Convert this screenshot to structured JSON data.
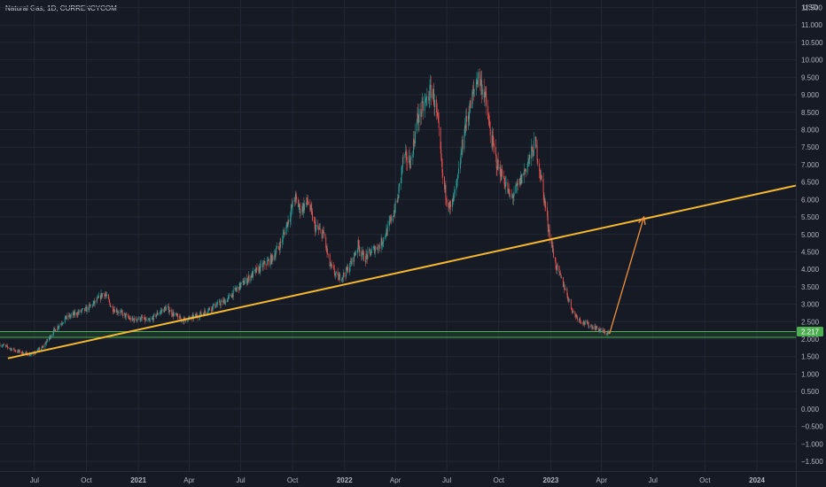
{
  "header": {
    "symbol_title": "Natural Gas, 1D, CURRENCYCOM"
  },
  "chart_data": {
    "type": "candlestick",
    "currency": "USD",
    "y_ticks": [
      "11.500",
      "11.000",
      "10.500",
      "10.000",
      "9.500",
      "9.000",
      "8.500",
      "8.000",
      "7.500",
      "7.000",
      "6.500",
      "6.000",
      "5.500",
      "5.000",
      "4.500",
      "4.000",
      "3.500",
      "3.000",
      "2.500",
      "2.000",
      "1.500",
      "1.000",
      "0.500",
      "0.000",
      "−0.500",
      "−1.000",
      "−1.500"
    ],
    "ylim": [
      -1.5,
      11.5
    ],
    "x_ticks": [
      {
        "label": "Jul",
        "date": "2020-07-01",
        "bold": false
      },
      {
        "label": "Oct",
        "date": "2020-10-01",
        "bold": false
      },
      {
        "label": "2021",
        "date": "2021-01-01",
        "bold": true
      },
      {
        "label": "Apr",
        "date": "2021-04-01",
        "bold": false
      },
      {
        "label": "Jul",
        "date": "2021-07-01",
        "bold": false
      },
      {
        "label": "Oct",
        "date": "2021-10-01",
        "bold": false
      },
      {
        "label": "2022",
        "date": "2022-01-01",
        "bold": true
      },
      {
        "label": "Apr",
        "date": "2022-04-01",
        "bold": false
      },
      {
        "label": "Jul",
        "date": "2022-07-01",
        "bold": false
      },
      {
        "label": "Oct",
        "date": "2022-10-01",
        "bold": false
      },
      {
        "label": "2023",
        "date": "2023-01-01",
        "bold": true
      },
      {
        "label": "Apr",
        "date": "2023-04-01",
        "bold": false
      },
      {
        "label": "Jul",
        "date": "2023-07-01",
        "bold": false
      },
      {
        "label": "Oct",
        "date": "2023-10-01",
        "bold": false
      },
      {
        "label": "2024",
        "date": "2024-01-01",
        "bold": true
      }
    ],
    "xlim": [
      "2020-05-01",
      "2024-03-10"
    ],
    "price_path": [
      [
        "2020-05-01",
        1.85
      ],
      [
        "2020-06-01",
        1.65
      ],
      [
        "2020-06-25",
        1.55
      ],
      [
        "2020-07-15",
        1.75
      ],
      [
        "2020-08-05",
        2.25
      ],
      [
        "2020-08-25",
        2.6
      ],
      [
        "2020-09-15",
        2.75
      ],
      [
        "2020-10-01",
        2.85
      ],
      [
        "2020-10-20",
        3.1
      ],
      [
        "2020-11-01",
        3.35
      ],
      [
        "2020-11-15",
        2.9
      ],
      [
        "2020-12-01",
        2.75
      ],
      [
        "2020-12-20",
        2.55
      ],
      [
        "2021-01-05",
        2.6
      ],
      [
        "2021-01-20",
        2.5
      ],
      [
        "2021-02-05",
        2.75
      ],
      [
        "2021-02-20",
        2.9
      ],
      [
        "2021-03-05",
        2.7
      ],
      [
        "2021-03-20",
        2.55
      ],
      [
        "2021-04-05",
        2.6
      ],
      [
        "2021-04-25",
        2.75
      ],
      [
        "2021-05-15",
        2.95
      ],
      [
        "2021-06-05",
        3.1
      ],
      [
        "2021-06-25",
        3.45
      ],
      [
        "2021-07-15",
        3.75
      ],
      [
        "2021-08-05",
        4.05
      ],
      [
        "2021-08-25",
        4.3
      ],
      [
        "2021-09-10",
        4.75
      ],
      [
        "2021-09-25",
        5.5
      ],
      [
        "2021-10-05",
        6.05
      ],
      [
        "2021-10-15",
        5.7
      ],
      [
        "2021-10-28",
        5.95
      ],
      [
        "2021-11-10",
        5.2
      ],
      [
        "2021-11-25",
        5.0
      ],
      [
        "2021-12-05",
        4.15
      ],
      [
        "2021-12-20",
        3.75
      ],
      [
        "2022-01-01",
        3.85
      ],
      [
        "2022-01-15",
        4.25
      ],
      [
        "2022-01-25",
        4.7
      ],
      [
        "2022-02-05",
        4.3
      ],
      [
        "2022-02-20",
        4.55
      ],
      [
        "2022-03-05",
        4.7
      ],
      [
        "2022-03-20",
        5.2
      ],
      [
        "2022-04-05",
        6.0
      ],
      [
        "2022-04-15",
        7.2
      ],
      [
        "2022-04-28",
        7.1
      ],
      [
        "2022-05-10",
        8.3
      ],
      [
        "2022-05-25",
        8.8
      ],
      [
        "2022-06-05",
        9.2
      ],
      [
        "2022-06-15",
        8.2
      ],
      [
        "2022-06-25",
        6.4
      ],
      [
        "2022-07-08",
        5.7
      ],
      [
        "2022-07-20",
        6.5
      ],
      [
        "2022-08-01",
        8.0
      ],
      [
        "2022-08-15",
        8.9
      ],
      [
        "2022-08-25",
        9.55
      ],
      [
        "2022-09-05",
        9.1
      ],
      [
        "2022-09-15",
        8.0
      ],
      [
        "2022-09-28",
        7.0
      ],
      [
        "2022-10-10",
        6.6
      ],
      [
        "2022-10-22",
        6.0
      ],
      [
        "2022-11-05",
        6.4
      ],
      [
        "2022-11-20",
        7.0
      ],
      [
        "2022-12-05",
        7.6
      ],
      [
        "2022-12-15",
        6.6
      ],
      [
        "2022-12-28",
        5.2
      ],
      [
        "2023-01-10",
        4.1
      ],
      [
        "2023-01-25",
        3.5
      ],
      [
        "2023-02-10",
        2.75
      ],
      [
        "2023-02-25",
        2.5
      ],
      [
        "2023-03-10",
        2.4
      ],
      [
        "2023-03-25",
        2.3
      ],
      [
        "2023-04-05",
        2.2
      ],
      [
        "2023-04-15",
        2.17
      ]
    ],
    "support_zone": {
      "low": 2.05,
      "high": 2.217
    },
    "price_label": "2.217",
    "trendline": {
      "start": [
        "2020-05-15",
        1.45
      ],
      "end": [
        "2024-03-10",
        6.4
      ]
    },
    "projection_arrow": {
      "start": [
        "2023-04-15",
        2.15
      ],
      "end": [
        "2023-06-15",
        5.5
      ]
    },
    "colors": {
      "background": "#161a25",
      "grid": "#232733",
      "up": "#26a69a",
      "down": "#ef5350",
      "wick": "#8a8e9a",
      "trendline": "#f5b82e",
      "support": "#4caf50",
      "arrow": "#f0913c",
      "axis_text": "#b2b5be"
    }
  }
}
